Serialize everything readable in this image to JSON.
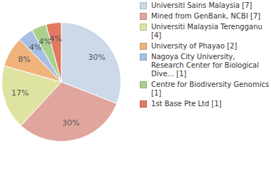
{
  "chart_data": {
    "type": "pie",
    "categories": [
      "Universiti Sains Malaysia [7]",
      "Mined from GenBank, NCBI [7]",
      "Universiti Malaysia Terengganu [4]",
      "University of Phayao [2]",
      "Nagoya City University, Research Center for Biological Dive... [1]",
      "Centre for Biodiversity Genomics [1]",
      "1st Base Pte Ltd [1]"
    ],
    "values": [
      30,
      30,
      17,
      8,
      4,
      4,
      4
    ],
    "value_labels": [
      "30%",
      "30%",
      "17%",
      "8%",
      "4%",
      "4%",
      "4%"
    ],
    "colors": [
      "#cbd9e8",
      "#e0a59d",
      "#dfe3a2",
      "#f0b37c",
      "#a7bfe3",
      "#abd08d",
      "#e07b62"
    ],
    "data_labels": true,
    "legend": "right"
  }
}
